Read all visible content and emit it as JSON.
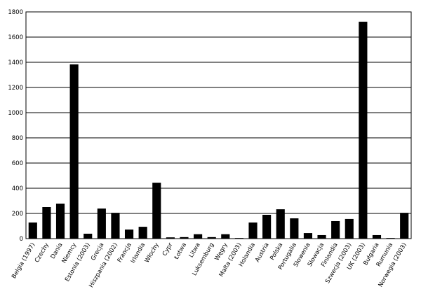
{
  "chart_data": {
    "type": "bar",
    "categories": [
      "Belgia (1997)",
      "Czechy",
      "Dania",
      "Niemcy",
      "Estonia (2003)",
      "Grecja",
      "Hiszpania (2002)",
      "Francja",
      "Irlandia",
      "Włochy",
      "Cypr",
      "Łotwa",
      "Litwa",
      "Luksemburg",
      "Węgry",
      "Malta (2003)",
      "Holandia",
      "Austria",
      "Polska",
      "Portugalia",
      "Słowenia",
      "Słowacja",
      "Finlandia",
      "Szwecja (2003)",
      "UK (2003)",
      "Bułgaria",
      "Rumunia",
      "Norwegia (2003)"
    ],
    "values": [
      128,
      250,
      278,
      1383,
      39,
      239,
      205,
      72,
      94,
      444,
      10,
      12,
      35,
      12,
      35,
      5,
      128,
      189,
      233,
      161,
      44,
      28,
      139,
      156,
      1722,
      28,
      5,
      205
    ],
    "color": "#000000",
    "ylim": [
      0,
      1800
    ],
    "yticks": [
      0,
      200,
      400,
      600,
      800,
      1000,
      1200,
      1400,
      1600,
      1800
    ],
    "grid": true
  }
}
